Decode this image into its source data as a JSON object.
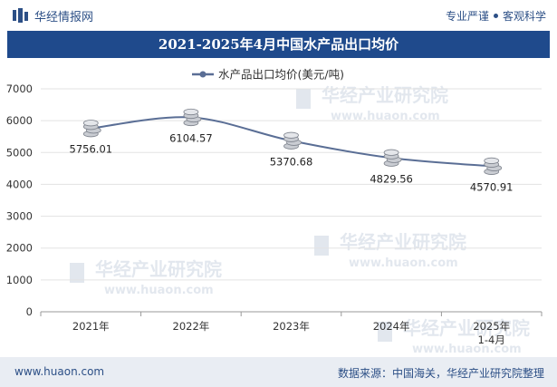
{
  "header": {
    "brand": "华经情报网",
    "tagline_left": "专业严谨",
    "tagline_right": "客观科学"
  },
  "title": "2021-2025年4月中国水产品出口均价",
  "chart_data": {
    "type": "line",
    "title": "2021-2025年4月中国水产品出口均价",
    "legend": "水产品出口均价(美元/吨)",
    "legend_position": "top-center",
    "categories": [
      "2021年",
      "2022年",
      "2023年",
      "2024年",
      "2025年\n1-4月"
    ],
    "series": [
      {
        "name": "水产品出口均价(美元/吨)",
        "values": [
          5756.01,
          6104.57,
          5370.68,
          4829.56,
          4570.91
        ]
      }
    ],
    "data_labels": [
      "5756.01",
      "6104.57",
      "5370.68",
      "4829.56",
      "4570.91"
    ],
    "ylim": [
      0,
      7000
    ],
    "yticks": [
      0,
      1000,
      2000,
      3000,
      4000,
      5000,
      6000,
      7000
    ],
    "xlabel": "",
    "ylabel": "",
    "grid": true,
    "colors": {
      "line": "#5a6e95",
      "marker": "#c9ccd2"
    }
  },
  "watermark": {
    "text": "华经产业研究院",
    "url": "www.huaon.com"
  },
  "footer": {
    "url": "www.huaon.com",
    "source": "数据来源：中国海关，华经产业研究院整理"
  }
}
